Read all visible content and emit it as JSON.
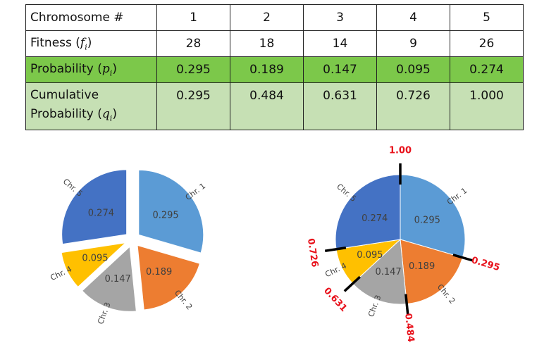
{
  "table": {
    "header": {
      "label": "Chromosome #",
      "values": [
        "1",
        "2",
        "3",
        "4",
        "5"
      ]
    },
    "fitness": {
      "label": "Fitness (",
      "symbol": "f",
      "sub": "i",
      "close": ")",
      "values": [
        "28",
        "18",
        "14",
        "9",
        "26"
      ]
    },
    "probability": {
      "label": "Probability (",
      "symbol": "p",
      "sub": "i",
      "close": ")",
      "values": [
        "0.295",
        "0.189",
        "0.147",
        "0.095",
        "0.274"
      ]
    },
    "cumulative": {
      "label_line1": "Cumulative",
      "label_line2": "Probability (",
      "symbol": "q",
      "sub": "i",
      "close": ")",
      "values": [
        "0.295",
        "0.484",
        "0.631",
        "0.726",
        "1.000"
      ]
    }
  },
  "chart_data": [
    {
      "type": "pie",
      "exploded": true,
      "slices": [
        {
          "label": "Chr. 1",
          "value": 0.295,
          "value_label": "0.295",
          "color": "#5b9bd5"
        },
        {
          "label": "Chr. 2",
          "value": 0.189,
          "value_label": "0.189",
          "color": "#ed7d31"
        },
        {
          "label": "Chr. 3",
          "value": 0.147,
          "value_label": "0.147",
          "color": "#a5a5a5"
        },
        {
          "label": "Chr. 4",
          "value": 0.095,
          "value_label": "0.095",
          "color": "#ffc000"
        },
        {
          "label": "Chr. 5",
          "value": 0.274,
          "value_label": "0.274",
          "color": "#4472c4"
        }
      ]
    },
    {
      "type": "pie",
      "exploded": false,
      "slices": [
        {
          "label": "Chr. 1",
          "value": 0.295,
          "value_label": "0.295",
          "color": "#5b9bd5"
        },
        {
          "label": "Chr. 2",
          "value": 0.189,
          "value_label": "0.189",
          "color": "#ed7d31"
        },
        {
          "label": "Chr. 3",
          "value": 0.147,
          "value_label": "0.147",
          "color": "#a5a5a5"
        },
        {
          "label": "Chr. 4",
          "value": 0.095,
          "value_label": "0.095",
          "color": "#ffc000"
        },
        {
          "label": "Chr. 5",
          "value": 0.274,
          "value_label": "0.274",
          "color": "#4472c4"
        }
      ],
      "boundaries": [
        {
          "value": 0.295,
          "label": "0.295"
        },
        {
          "value": 0.484,
          "label": "0.484"
        },
        {
          "value": 0.631,
          "label": "0.631"
        },
        {
          "value": 0.726,
          "label": "0.726"
        },
        {
          "value": 1.0,
          "label": "1.00"
        }
      ],
      "boundary_color": "#e8101a"
    }
  ]
}
